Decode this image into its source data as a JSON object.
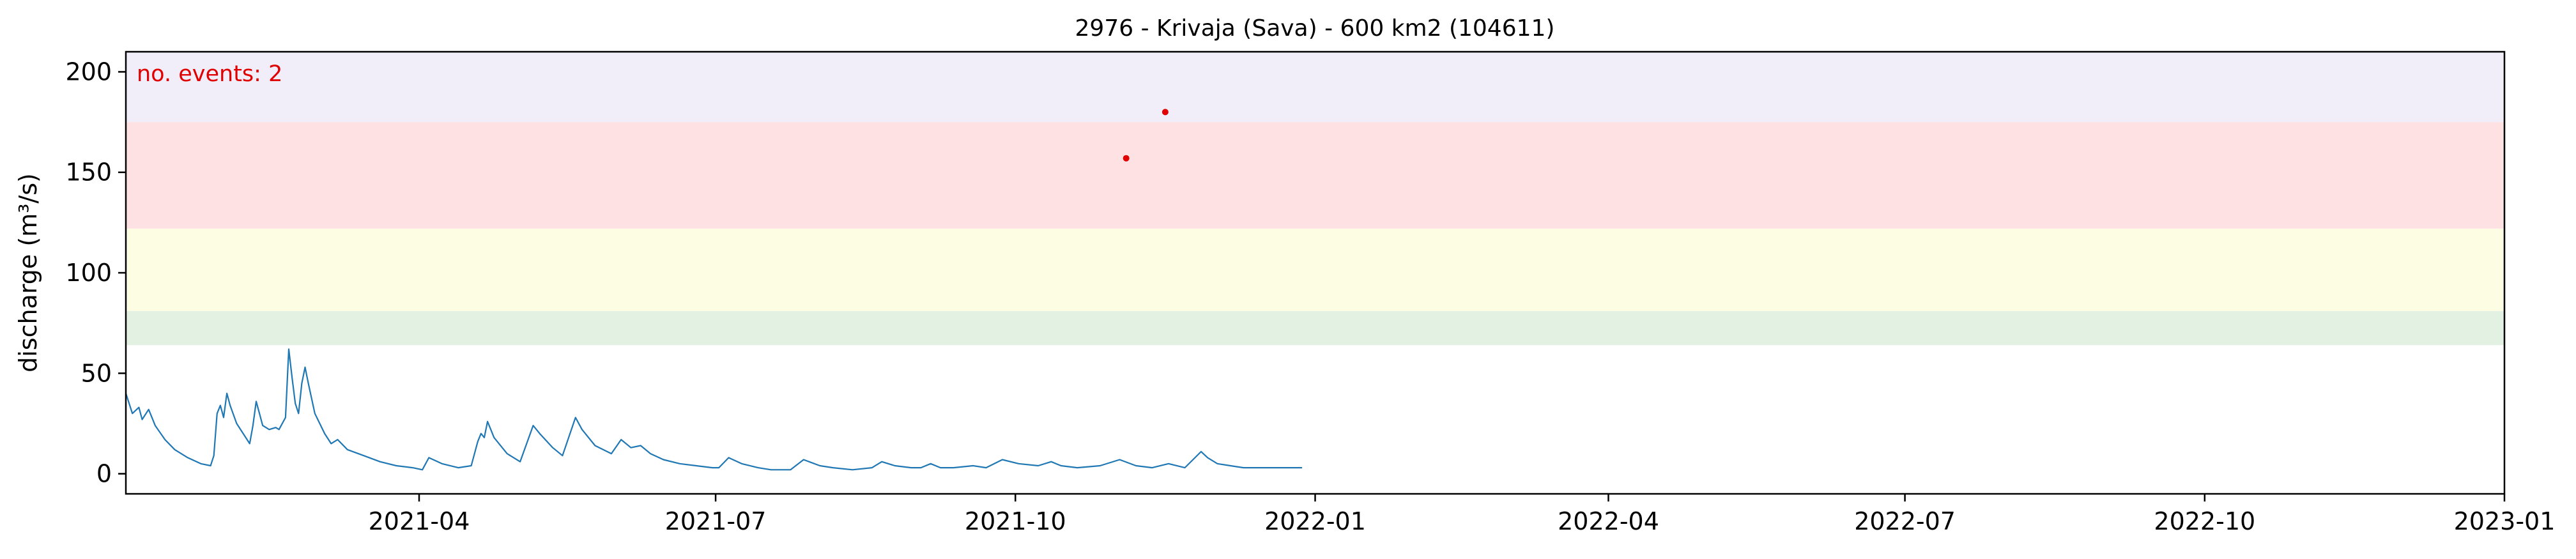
{
  "chart_data": {
    "type": "line",
    "title": "2976 - Krivaja (Sava) - 600 km2 (104611)",
    "ylabel": "discharge (m³/s)",
    "xlabel": "",
    "annotation": "no. events: 2",
    "xlim": [
      "2021-01-01",
      "2023-01-01"
    ],
    "ylim": [
      -10,
      210
    ],
    "grid": false,
    "y_ticks": [
      0,
      50,
      100,
      150,
      200
    ],
    "x_ticks": [
      {
        "date": "2021-04-01",
        "label": "2021-04"
      },
      {
        "date": "2021-07-01",
        "label": "2021-07"
      },
      {
        "date": "2021-10-01",
        "label": "2021-10"
      },
      {
        "date": "2022-01-01",
        "label": "2022-01"
      },
      {
        "date": "2022-04-01",
        "label": "2022-04"
      },
      {
        "date": "2022-07-01",
        "label": "2022-07"
      },
      {
        "date": "2022-10-01",
        "label": "2022-10"
      },
      {
        "date": "2023-01-01",
        "label": "2023-01"
      }
    ],
    "threshold_bands": [
      {
        "from": 64,
        "to": 81,
        "color": "#e3f1e3"
      },
      {
        "from": 81,
        "to": 122,
        "color": "#fdfde4"
      },
      {
        "from": 122,
        "to": 175,
        "color": "#fde1e3"
      },
      {
        "from": 175,
        "to": 210,
        "color": "#f1edf9"
      }
    ],
    "series": [
      {
        "color": "#1f77b4",
        "points": [
          [
            "2021-01-01",
            40
          ],
          [
            "2021-01-03",
            30
          ],
          [
            "2021-01-05",
            33
          ],
          [
            "2021-01-06",
            27
          ],
          [
            "2021-01-08",
            32
          ],
          [
            "2021-01-10",
            24
          ],
          [
            "2021-01-13",
            17
          ],
          [
            "2021-01-16",
            12
          ],
          [
            "2021-01-20",
            8
          ],
          [
            "2021-01-24",
            5
          ],
          [
            "2021-01-27",
            4
          ],
          [
            "2021-01-28",
            9
          ],
          [
            "2021-01-29",
            30
          ],
          [
            "2021-01-30",
            34
          ],
          [
            "2021-01-31",
            28
          ],
          [
            "2021-02-01",
            40
          ],
          [
            "2021-02-02",
            34
          ],
          [
            "2021-02-04",
            25
          ],
          [
            "2021-02-06",
            20
          ],
          [
            "2021-02-08",
            15
          ],
          [
            "2021-02-09",
            24
          ],
          [
            "2021-02-10",
            36
          ],
          [
            "2021-02-11",
            30
          ],
          [
            "2021-02-12",
            24
          ],
          [
            "2021-02-14",
            22
          ],
          [
            "2021-02-16",
            23
          ],
          [
            "2021-02-17",
            22
          ],
          [
            "2021-02-19",
            28
          ],
          [
            "2021-02-20",
            62
          ],
          [
            "2021-02-21",
            48
          ],
          [
            "2021-02-22",
            35
          ],
          [
            "2021-02-23",
            30
          ],
          [
            "2021-02-24",
            45
          ],
          [
            "2021-02-25",
            53
          ],
          [
            "2021-02-26",
            45
          ],
          [
            "2021-02-28",
            30
          ],
          [
            "2021-03-03",
            20
          ],
          [
            "2021-03-05",
            15
          ],
          [
            "2021-03-07",
            17
          ],
          [
            "2021-03-10",
            12
          ],
          [
            "2021-03-15",
            9
          ],
          [
            "2021-03-20",
            6
          ],
          [
            "2021-03-25",
            4
          ],
          [
            "2021-03-30",
            3
          ],
          [
            "2021-04-02",
            2
          ],
          [
            "2021-04-04",
            8
          ],
          [
            "2021-04-08",
            5
          ],
          [
            "2021-04-13",
            3
          ],
          [
            "2021-04-17",
            4
          ],
          [
            "2021-04-19",
            16
          ],
          [
            "2021-04-20",
            20
          ],
          [
            "2021-04-21",
            18
          ],
          [
            "2021-04-22",
            26
          ],
          [
            "2021-04-24",
            18
          ],
          [
            "2021-04-28",
            10
          ],
          [
            "2021-05-02",
            6
          ],
          [
            "2021-05-06",
            24
          ],
          [
            "2021-05-08",
            20
          ],
          [
            "2021-05-12",
            13
          ],
          [
            "2021-05-15",
            9
          ],
          [
            "2021-05-19",
            28
          ],
          [
            "2021-05-21",
            22
          ],
          [
            "2021-05-25",
            14
          ],
          [
            "2021-05-30",
            10
          ],
          [
            "2021-06-02",
            17
          ],
          [
            "2021-06-05",
            13
          ],
          [
            "2021-06-08",
            14
          ],
          [
            "2021-06-11",
            10
          ],
          [
            "2021-06-15",
            7
          ],
          [
            "2021-06-20",
            5
          ],
          [
            "2021-06-25",
            4
          ],
          [
            "2021-06-30",
            3
          ],
          [
            "2021-07-02",
            3
          ],
          [
            "2021-07-05",
            8
          ],
          [
            "2021-07-09",
            5
          ],
          [
            "2021-07-14",
            3
          ],
          [
            "2021-07-18",
            2
          ],
          [
            "2021-07-24",
            2
          ],
          [
            "2021-07-28",
            7
          ],
          [
            "2021-08-02",
            4
          ],
          [
            "2021-08-06",
            3
          ],
          [
            "2021-08-12",
            2
          ],
          [
            "2021-08-18",
            3
          ],
          [
            "2021-08-21",
            6
          ],
          [
            "2021-08-25",
            4
          ],
          [
            "2021-08-30",
            3
          ],
          [
            "2021-09-02",
            3
          ],
          [
            "2021-09-05",
            5
          ],
          [
            "2021-09-08",
            3
          ],
          [
            "2021-09-12",
            3
          ],
          [
            "2021-09-18",
            4
          ],
          [
            "2021-09-22",
            3
          ],
          [
            "2021-09-27",
            7
          ],
          [
            "2021-10-02",
            5
          ],
          [
            "2021-10-08",
            4
          ],
          [
            "2021-10-12",
            6
          ],
          [
            "2021-10-15",
            4
          ],
          [
            "2021-10-20",
            3
          ],
          [
            "2021-10-27",
            4
          ],
          [
            "2021-11-02",
            7
          ],
          [
            "2021-11-07",
            4
          ],
          [
            "2021-11-12",
            3
          ],
          [
            "2021-11-17",
            5
          ],
          [
            "2021-11-22",
            3
          ],
          [
            "2021-11-27",
            11
          ],
          [
            "2021-11-29",
            8
          ],
          [
            "2021-12-02",
            5
          ],
          [
            "2021-12-06",
            4
          ],
          [
            "2021-12-10",
            3
          ],
          [
            "2021-12-16",
            3
          ],
          [
            "2021-12-22",
            3
          ],
          [
            "2021-12-28",
            3
          ]
        ]
      }
    ],
    "events": [
      {
        "date": "2021-11-04",
        "value": 157,
        "color": "#e00000"
      },
      {
        "date": "2021-11-16",
        "value": 180,
        "color": "#e00000"
      }
    ]
  }
}
